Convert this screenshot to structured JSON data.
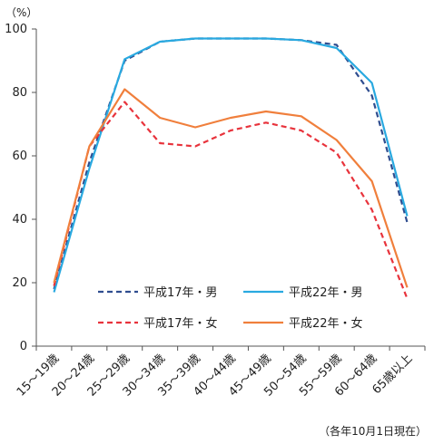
{
  "chart_data": {
    "type": "line",
    "unit_label": "（%）",
    "note": "（各年10月1日現在）",
    "ylim": [
      0,
      100
    ],
    "yticks": [
      0,
      20,
      40,
      60,
      80,
      100
    ],
    "categories": [
      "15～19歳",
      "20～24歳",
      "25～29歳",
      "30～34歳",
      "35～39歳",
      "40～44歳",
      "45～49歳",
      "50～54歳",
      "55～59歳",
      "60～64歳",
      "65歳以上"
    ],
    "series": [
      {
        "name": "平成17年・男",
        "color": "#2f4d8f",
        "dash": true,
        "values": [
          18,
          58,
          90,
          96,
          97,
          97,
          97,
          96.5,
          95,
          79,
          39
        ]
      },
      {
        "name": "平成22年・男",
        "color": "#29a9e0",
        "dash": false,
        "values": [
          17,
          56,
          90.5,
          96,
          97,
          97,
          97,
          96.5,
          94,
          83,
          41
        ]
      },
      {
        "name": "平成17年・女",
        "color": "#e8333c",
        "dash": true,
        "values": [
          19,
          63,
          77,
          64,
          63,
          68,
          70.5,
          68,
          61,
          43,
          15
        ]
      },
      {
        "name": "平成22年・女",
        "color": "#f07f3c",
        "dash": false,
        "values": [
          20,
          63,
          81,
          72,
          69,
          72,
          74,
          72.5,
          65,
          52,
          18.5
        ]
      }
    ],
    "legend": "inside-bottom",
    "grid": false
  }
}
